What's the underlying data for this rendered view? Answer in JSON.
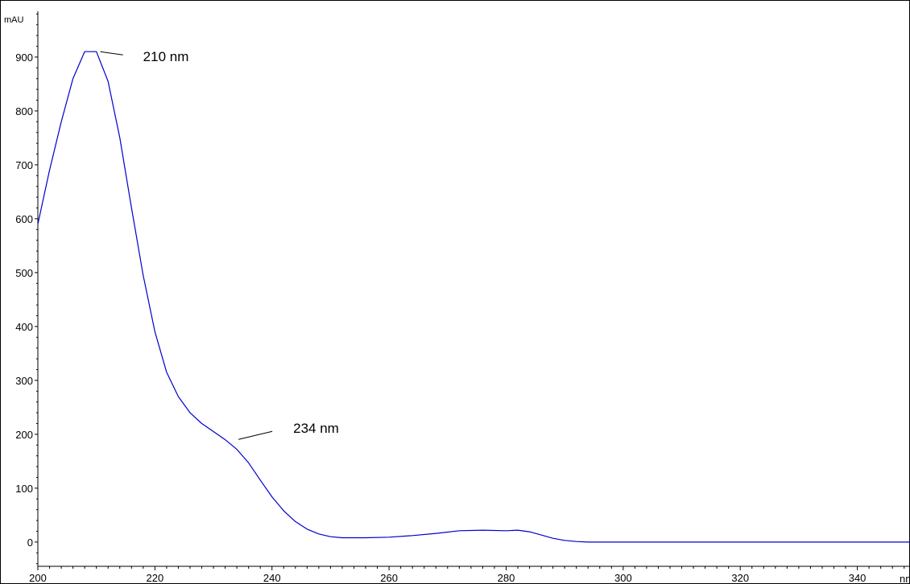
{
  "chart_data": {
    "type": "line",
    "title": "",
    "ylabel": "mAU",
    "xlabel": "nm",
    "xlim": [
      200,
      349
    ],
    "ylim": [
      -45,
      985
    ],
    "x_ticks": [
      200,
      220,
      240,
      260,
      280,
      300,
      320,
      340
    ],
    "x_tick_labels": [
      "200",
      "220",
      "240",
      "260",
      "280",
      "300",
      "320",
      "340"
    ],
    "y_ticks": [
      0,
      100,
      200,
      300,
      400,
      500,
      600,
      700,
      800,
      900
    ],
    "y_tick_labels": [
      "0",
      "100",
      "200",
      "300",
      "400",
      "500",
      "600",
      "700",
      "800",
      "900"
    ],
    "grid": false,
    "series": [
      {
        "color": "#0000cc",
        "x": [
          200,
          202,
          204,
          206,
          208,
          209,
          210,
          212,
          214,
          216,
          218,
          220,
          222,
          224,
          226,
          228,
          230,
          232,
          234,
          236,
          238,
          240,
          242,
          244,
          246,
          248,
          250,
          252,
          256,
          260,
          264,
          268,
          272,
          276,
          280,
          282,
          284,
          286,
          288,
          290,
          292,
          294,
          300,
          320,
          340,
          349
        ],
        "y": [
          590,
          690,
          780,
          860,
          910,
          910,
          910,
          855,
          750,
          620,
          495,
          390,
          315,
          270,
          240,
          220,
          205,
          190,
          172,
          147,
          115,
          84,
          58,
          38,
          24,
          15,
          10,
          8,
          8,
          9,
          12,
          16,
          21,
          22,
          21,
          22,
          19,
          13,
          7,
          3,
          1,
          0,
          0,
          0,
          0,
          0
        ]
      }
    ],
    "annotations": [
      {
        "label": "210 nm",
        "x": 210,
        "y": 910
      },
      {
        "label": "234 nm",
        "x": 234,
        "y": 195
      }
    ]
  }
}
